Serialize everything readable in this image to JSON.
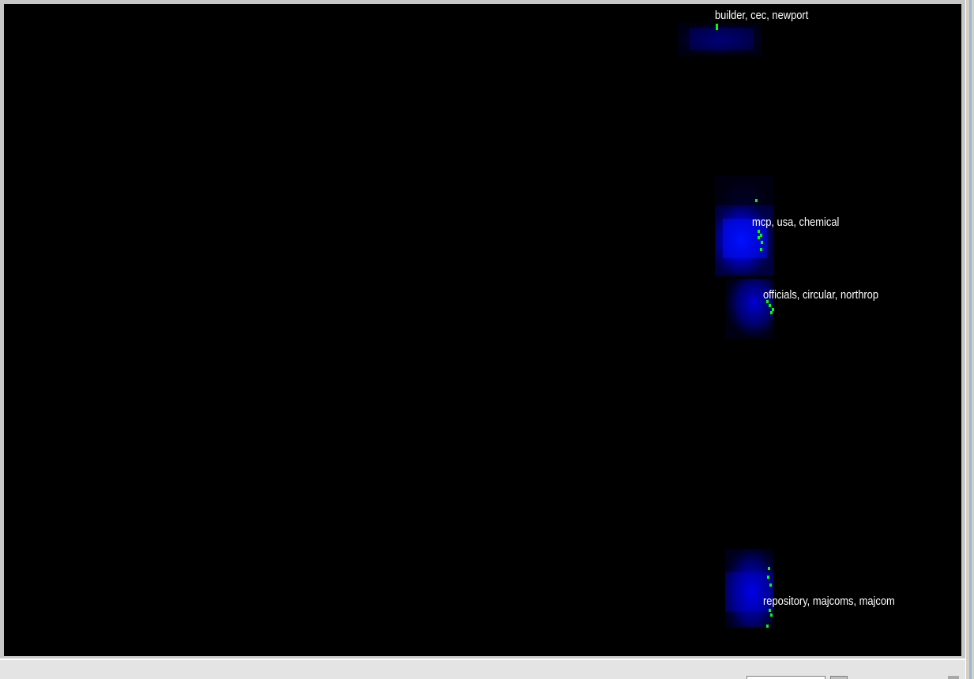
{
  "clusters": [
    {
      "label": "builder, cec, newport",
      "intensity": 0.18
    },
    {
      "label": "mcp, usa, chemical",
      "intensity": 1.0
    },
    {
      "label": "officials, circular, northrop",
      "intensity": 0.6
    },
    {
      "label": "repository, majcoms, majcom",
      "intensity": 0.55
    }
  ],
  "colors": {
    "background": "#000000",
    "density": "#0000ff",
    "point": "#00ff00",
    "label": "#ffffff",
    "frame": "#c8c8c8",
    "status_bar": "#e4e4e4"
  }
}
